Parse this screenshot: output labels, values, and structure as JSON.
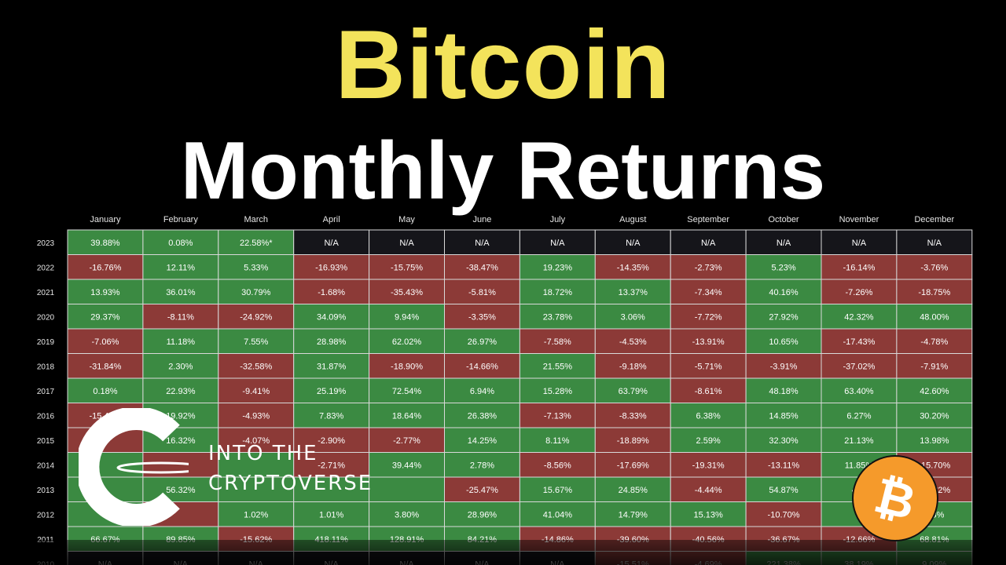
{
  "title": {
    "line1": "Bitcoin",
    "line2": "Monthly Returns"
  },
  "branding": {
    "line1": "INTO THE",
    "line2": "CRYPTOVERSE",
    "logo_icon": "into-the-cryptoverse-logo",
    "coin_icon": "bitcoin-icon",
    "coin_color": "#f7931a"
  },
  "colors": {
    "positive": "#3b8a42",
    "negative": "#8c3a37",
    "na": "#15151a",
    "grid": "#d9d9d9"
  },
  "chart_data": {
    "type": "table",
    "columns": [
      "January",
      "February",
      "March",
      "April",
      "May",
      "June",
      "July",
      "August",
      "September",
      "October",
      "November",
      "December"
    ],
    "rows": [
      {
        "year": "2023",
        "values": [
          "39.88%",
          "0.08%",
          "22.58%*",
          "N/A",
          "N/A",
          "N/A",
          "N/A",
          "N/A",
          "N/A",
          "N/A",
          "N/A",
          "N/A"
        ]
      },
      {
        "year": "2022",
        "values": [
          "-16.76%",
          "12.11%",
          "5.33%",
          "-16.93%",
          "-15.75%",
          "-38.47%",
          "19.23%",
          "-14.35%",
          "-2.73%",
          "5.23%",
          "-16.14%",
          "-3.76%"
        ]
      },
      {
        "year": "2021",
        "values": [
          "13.93%",
          "36.01%",
          "30.79%",
          "-1.68%",
          "-35.43%",
          "-5.81%",
          "18.72%",
          "13.37%",
          "-7.34%",
          "40.16%",
          "-7.26%",
          "-18.75%"
        ]
      },
      {
        "year": "2020",
        "values": [
          "29.37%",
          "-8.11%",
          "-24.92%",
          "34.09%",
          "9.94%",
          "-3.35%",
          "23.78%",
          "3.06%",
          "-7.72%",
          "27.92%",
          "42.32%",
          "48.00%"
        ]
      },
      {
        "year": "2019",
        "values": [
          "-7.06%",
          "11.18%",
          "7.55%",
          "28.98%",
          "62.02%",
          "26.97%",
          "-7.58%",
          "-4.53%",
          "-13.91%",
          "10.65%",
          "-17.43%",
          "-4.78%"
        ]
      },
      {
        "year": "2018",
        "values": [
          "-31.84%",
          "2.30%",
          "-32.58%",
          "31.87%",
          "-18.90%",
          "-14.66%",
          "21.55%",
          "-9.18%",
          "-5.71%",
          "-3.91%",
          "-37.02%",
          "-7.91%"
        ]
      },
      {
        "year": "2017",
        "values": [
          "0.18%",
          "22.93%",
          "-9.41%",
          "25.19%",
          "72.54%",
          "6.94%",
          "15.28%",
          "63.79%",
          "-8.61%",
          "48.18%",
          "63.40%",
          "42.60%"
        ]
      },
      {
        "year": "2016",
        "values": [
          "-15.49%",
          "19.92%",
          "-4.93%",
          "7.83%",
          "18.64%",
          "26.38%",
          "-7.13%",
          "-8.33%",
          "6.38%",
          "14.85%",
          "6.27%",
          "30.20%"
        ]
      },
      {
        "year": "2015",
        "values": [
          "",
          "16.32%",
          "-4.07%",
          "-2.90%",
          "-2.77%",
          "14.25%",
          "8.11%",
          "-18.89%",
          "2.59%",
          "32.30%",
          "21.13%",
          "13.98%"
        ]
      },
      {
        "year": "2014",
        "values": [
          "",
          "",
          "",
          "-2.71%",
          "39.44%",
          "2.78%",
          "-8.56%",
          "-17.69%",
          "-19.31%",
          "-13.11%",
          "11.85%",
          "-15.70%"
        ]
      },
      {
        "year": "2013",
        "values": [
          "",
          "56.32%",
          "",
          "",
          "",
          "-25.47%",
          "15.67%",
          "24.85%",
          "-4.44%",
          "54.87%",
          "453",
          "-34.82%"
        ]
      },
      {
        "year": "2012",
        "values": [
          "",
          "",
          "1.02%",
          "1.01%",
          "3.80%",
          "28.96%",
          "41.04%",
          "14.79%",
          "15.13%",
          "-10.70%",
          "",
          "3.3%"
        ]
      },
      {
        "year": "2011",
        "values": [
          "66.67%",
          "89.85%",
          "-15.62%",
          "418.11%",
          "128.91%",
          "84.21%",
          "-14.86%",
          "-39.60%",
          "-40.56%",
          "-36.67%",
          "-12.66%",
          "68.81%"
        ]
      },
      {
        "year": "2010",
        "values": [
          "N/A",
          "N/A",
          "N/A",
          "N/A",
          "N/A",
          "N/A",
          "N/A",
          "-15.51%",
          "-4.69%",
          "221.38%",
          "38.19%",
          "9.09%"
        ]
      }
    ],
    "signs": [
      [
        "+",
        "+",
        "+",
        "na",
        "na",
        "na",
        "na",
        "na",
        "na",
        "na",
        "na",
        "na"
      ],
      [
        "-",
        "+",
        "+",
        "-",
        "-",
        "-",
        "+",
        "-",
        "-",
        "+",
        "-",
        "-"
      ],
      [
        "+",
        "+",
        "+",
        "-",
        "-",
        "-",
        "+",
        "+",
        "-",
        "+",
        "-",
        "-"
      ],
      [
        "+",
        "-",
        "-",
        "+",
        "+",
        "-",
        "+",
        "+",
        "-",
        "+",
        "+",
        "+"
      ],
      [
        "-",
        "+",
        "+",
        "+",
        "+",
        "+",
        "-",
        "-",
        "-",
        "+",
        "-",
        "-"
      ],
      [
        "-",
        "+",
        "-",
        "+",
        "-",
        "-",
        "+",
        "-",
        "-",
        "-",
        "-",
        "-"
      ],
      [
        "+",
        "+",
        "-",
        "+",
        "+",
        "+",
        "+",
        "+",
        "-",
        "+",
        "+",
        "+"
      ],
      [
        "-",
        "+",
        "-",
        "+",
        "+",
        "+",
        "-",
        "-",
        "+",
        "+",
        "+",
        "+"
      ],
      [
        "-",
        "+",
        "-",
        "-",
        "-",
        "+",
        "+",
        "-",
        "+",
        "+",
        "+",
        "+"
      ],
      [
        "+",
        "-",
        "+",
        "-",
        "+",
        "+",
        "-",
        "-",
        "-",
        "-",
        "+",
        "-"
      ],
      [
        "+",
        "+",
        "+",
        "+",
        "+",
        "-",
        "+",
        "+",
        "-",
        "+",
        "+",
        "-"
      ],
      [
        "+",
        "-",
        "+",
        "+",
        "+",
        "+",
        "+",
        "+",
        "+",
        "-",
        "+",
        "+"
      ],
      [
        "+",
        "+",
        "-",
        "+",
        "+",
        "+",
        "-",
        "-",
        "-",
        "-",
        "-",
        "+"
      ],
      [
        "na",
        "na",
        "na",
        "na",
        "na",
        "na",
        "na",
        "-",
        "-",
        "+",
        "+",
        "+"
      ]
    ]
  }
}
